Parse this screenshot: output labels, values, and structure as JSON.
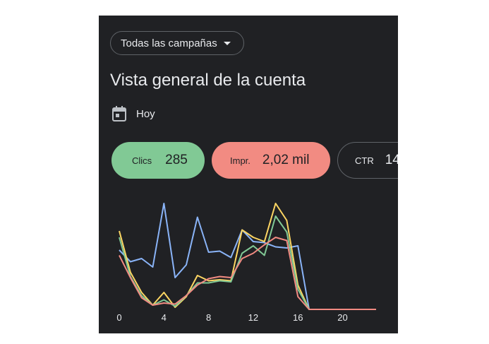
{
  "header": {
    "campaign_dropdown_label": "Todas las campañas",
    "page_title": "Vista general de la cuenta",
    "date_range": "Hoy"
  },
  "metrics": {
    "clicks": {
      "label": "Clics",
      "value": "285",
      "color": "#81c995"
    },
    "impressions": {
      "label": "Impr.",
      "value": "2,02 mil",
      "color": "#f28b82"
    },
    "ctr": {
      "label": "CTR",
      "value": "14"
    }
  },
  "icons": {
    "calendar": "calendar-icon",
    "dropdown": "caret-down-icon"
  },
  "colors": {
    "background": "#202124",
    "text": "#e8eaed",
    "outline": "#5f6368"
  },
  "chart_data": {
    "type": "line",
    "x": [
      0,
      1,
      2,
      3,
      4,
      5,
      6,
      7,
      8,
      9,
      10,
      11,
      12,
      13,
      14,
      15,
      16,
      17,
      18,
      19,
      20,
      21,
      22,
      23
    ],
    "xticks": [
      "0",
      "4",
      "8",
      "12",
      "16",
      "20"
    ],
    "xlim": [
      0,
      23
    ],
    "ylim": [
      0,
      100
    ],
    "grid": false,
    "series": [
      {
        "color": "#8ab4f8",
        "values": [
          56,
          45,
          48,
          40,
          100,
          30,
          42,
          87,
          54,
          55,
          49,
          75,
          64,
          63,
          59,
          58,
          60,
          0,
          0,
          0,
          0,
          0,
          0,
          0
        ]
      },
      {
        "color": "#fdd663",
        "values": [
          74,
          35,
          16,
          4,
          16,
          2,
          12,
          32,
          27,
          28,
          27,
          75,
          68,
          64,
          100,
          84,
          23,
          0,
          0,
          0,
          0,
          0,
          0,
          0
        ]
      },
      {
        "color": "#81c995",
        "values": [
          68,
          31,
          13,
          4,
          9,
          3,
          13,
          25,
          25,
          27,
          26,
          53,
          60,
          51,
          88,
          73,
          19,
          0,
          0,
          0,
          0,
          0,
          0,
          0
        ]
      },
      {
        "color": "#f28b82",
        "values": [
          51,
          30,
          11,
          4,
          6,
          5,
          13,
          23,
          29,
          31,
          30,
          48,
          53,
          61,
          68,
          65,
          12,
          0,
          0,
          0,
          0,
          0,
          0,
          0
        ]
      }
    ]
  }
}
